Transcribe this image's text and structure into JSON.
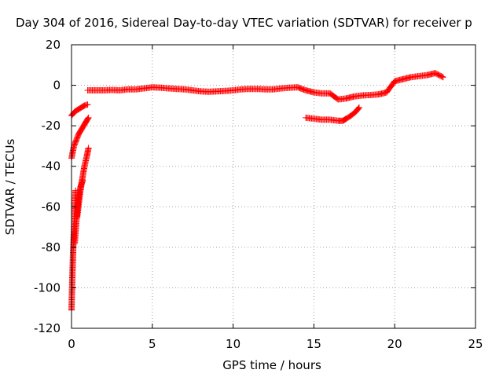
{
  "chart_data": {
    "type": "scatter",
    "title": "Day 304 of 2016, Sidereal Day-to-day VTEC variation (SDTVAR) for receiver p",
    "xlabel": "GPS time / hours",
    "ylabel": "SDTVAR / TECUs",
    "xlim": [
      0,
      25
    ],
    "ylim": [
      -120,
      20
    ],
    "xticks": [
      0,
      5,
      10,
      15,
      20,
      25
    ],
    "yticks": [
      -120,
      -100,
      -80,
      -60,
      -40,
      -20,
      0,
      20
    ],
    "grid": true,
    "marker": "+",
    "series": [
      {
        "color": "#ff0000",
        "segments": [
          {
            "x": [
              0.0,
              0.2,
              0.4,
              0.6,
              0.8,
              1.0
            ],
            "y": [
              -15,
              -13,
              -12,
              -11,
              -10,
              -9.5
            ]
          },
          {
            "x": [
              0.0,
              0.15,
              0.3,
              0.45,
              0.6,
              0.75,
              0.9,
              1.05
            ],
            "y": [
              -36,
              -30,
              -27,
              -24,
              -22,
              -20,
              -18,
              -16
            ]
          },
          {
            "x": [
              0.0,
              0.05,
              0.1,
              0.15,
              0.2,
              0.25
            ],
            "y": [
              -111,
              -95,
              -82,
              -72,
              -62,
              -52
            ]
          },
          {
            "x": [
              0.2,
              0.3,
              0.4,
              0.5,
              0.6,
              0.7
            ],
            "y": [
              -78,
              -67,
              -58,
              -52,
              -49,
              -47
            ]
          },
          {
            "x": [
              0.35,
              0.5,
              0.65,
              0.8,
              0.95,
              1.05
            ],
            "y": [
              -65,
              -55,
              -47,
              -40,
              -35,
              -31
            ]
          },
          {
            "x": [
              1.0,
              1.5,
              2.0,
              2.5,
              3.0,
              3.5,
              4.0,
              4.5,
              5.0,
              5.5,
              6.0,
              6.5,
              7.0,
              7.5,
              8.0,
              8.5,
              9.0,
              9.5,
              10.0,
              10.5,
              11.0,
              11.5,
              12.0,
              12.5,
              13.0,
              13.5,
              14.0,
              14.5,
              15.0,
              15.5,
              16.0,
              16.5,
              17.0,
              17.5,
              18.0,
              18.5,
              19.0,
              19.5,
              20.0,
              20.5,
              21.0,
              21.5,
              22.0,
              22.5,
              23.0
            ],
            "y": [
              -2.5,
              -2.5,
              -2.5,
              -2.3,
              -2.5,
              -2.0,
              -2.0,
              -1.5,
              -1.0,
              -1.2,
              -1.5,
              -1.8,
              -2.0,
              -2.5,
              -3.0,
              -3.2,
              -3.0,
              -2.8,
              -2.5,
              -2.0,
              -1.8,
              -1.8,
              -2.0,
              -2.0,
              -1.5,
              -1.2,
              -1.0,
              -2.5,
              -3.5,
              -4.0,
              -4.0,
              -7.0,
              -6.5,
              -5.5,
              -5.0,
              -4.8,
              -4.5,
              -3.5,
              2.0,
              3.0,
              4.0,
              4.5,
              5.0,
              6.0,
              4.0
            ]
          },
          {
            "x": [
              14.5,
              15.0,
              15.5,
              16.0,
              16.5,
              16.8,
              17.0,
              17.3,
              17.6,
              17.8
            ],
            "y": [
              -16,
              -16.5,
              -17,
              -17,
              -17.5,
              -17.5,
              -16.5,
              -15,
              -13,
              -11
            ]
          }
        ]
      }
    ]
  }
}
